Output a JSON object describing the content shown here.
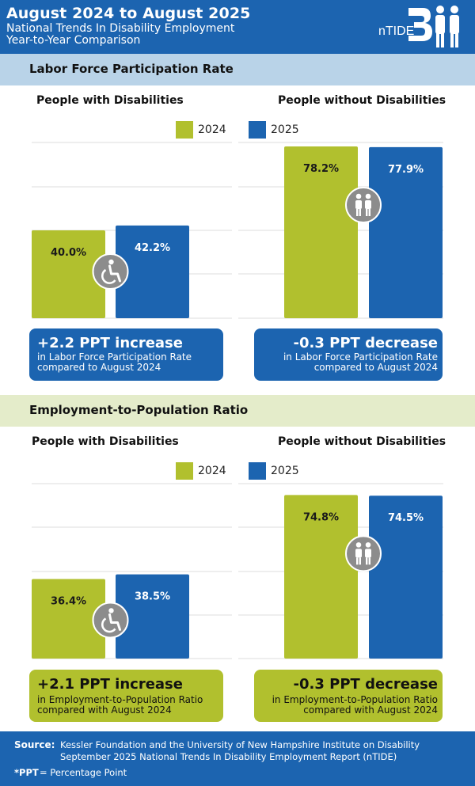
{
  "header": {
    "title": "August 2024 to August 2025",
    "subtitle_line1": "National Trends In Disability Employment",
    "subtitle_line2": "Year-to-Year Comparison",
    "logo_text": "nTIDE"
  },
  "colors": {
    "primary_blue": "#1c64b0",
    "accent_green": "#b1c02e",
    "section_blue_bg": "#b9d3e8",
    "section_green_bg": "#e4ecca",
    "icon_gray": "#8c8c8c"
  },
  "sections": [
    {
      "title": "Labor Force Participation Rate",
      "left_title": "People with Disabilities",
      "right_title": "People without Disabilities",
      "legend": [
        "2024",
        "2025"
      ],
      "left_callout": {
        "headline": "+2.2 PPT  increase",
        "line1": "in Labor Force Participation Rate",
        "line2": "compared to August 2024"
      },
      "right_callout": {
        "headline": "-0.3 PPT  decrease",
        "line1": "in Labor Force Participation Rate",
        "line2": "compared to August 2024"
      }
    },
    {
      "title": "Employment-to-Population Ratio",
      "left_title": "People with Disabilities",
      "right_title": "People without Disabilities",
      "legend": [
        "2024",
        "2025"
      ],
      "left_callout": {
        "headline": "+2.1 PPT  increase",
        "line1": "in Employment-to-Population Ratio",
        "line2": "compared with August 2024"
      },
      "right_callout": {
        "headline": "-0.3 PPT  decrease",
        "line1": "in Employment-to-Population Ratio",
        "line2": "compared with August 2024"
      }
    }
  ],
  "chart_data": [
    {
      "type": "bar",
      "title": "Labor Force Participation Rate",
      "categories": [
        "People with Disabilities",
        "People without Disabilities"
      ],
      "series": [
        {
          "name": "2024",
          "values": [
            40.0,
            78.2
          ],
          "labels": [
            "40.0%",
            "78.2%"
          ]
        },
        {
          "name": "2025",
          "values": [
            42.2,
            77.9
          ],
          "labels": [
            "42.2%",
            "77.9%"
          ]
        }
      ],
      "ylim": [
        0,
        80
      ],
      "grid": true,
      "legend": "top-center"
    },
    {
      "type": "bar",
      "title": "Employment-to-Population Ratio",
      "categories": [
        "People with Disabilities",
        "People without Disabilities"
      ],
      "series": [
        {
          "name": "2024",
          "values": [
            36.4,
            74.8
          ],
          "labels": [
            "36.4%",
            "74.8%"
          ]
        },
        {
          "name": "2025",
          "values": [
            38.5,
            74.5
          ],
          "labels": [
            "38.5%",
            "74.5%"
          ]
        }
      ],
      "ylim": [
        0,
        80
      ],
      "grid": true,
      "legend": "top-center"
    }
  ],
  "footer": {
    "source_label": "Source:",
    "source_line1": "Kessler Foundation and the University of New Hampshire Institute on Disability",
    "source_line2": "September 2025 National Trends In Disability Employment Report (nTIDE)",
    "note_key": "*PPT",
    "note_value": "= Percentage Point"
  }
}
